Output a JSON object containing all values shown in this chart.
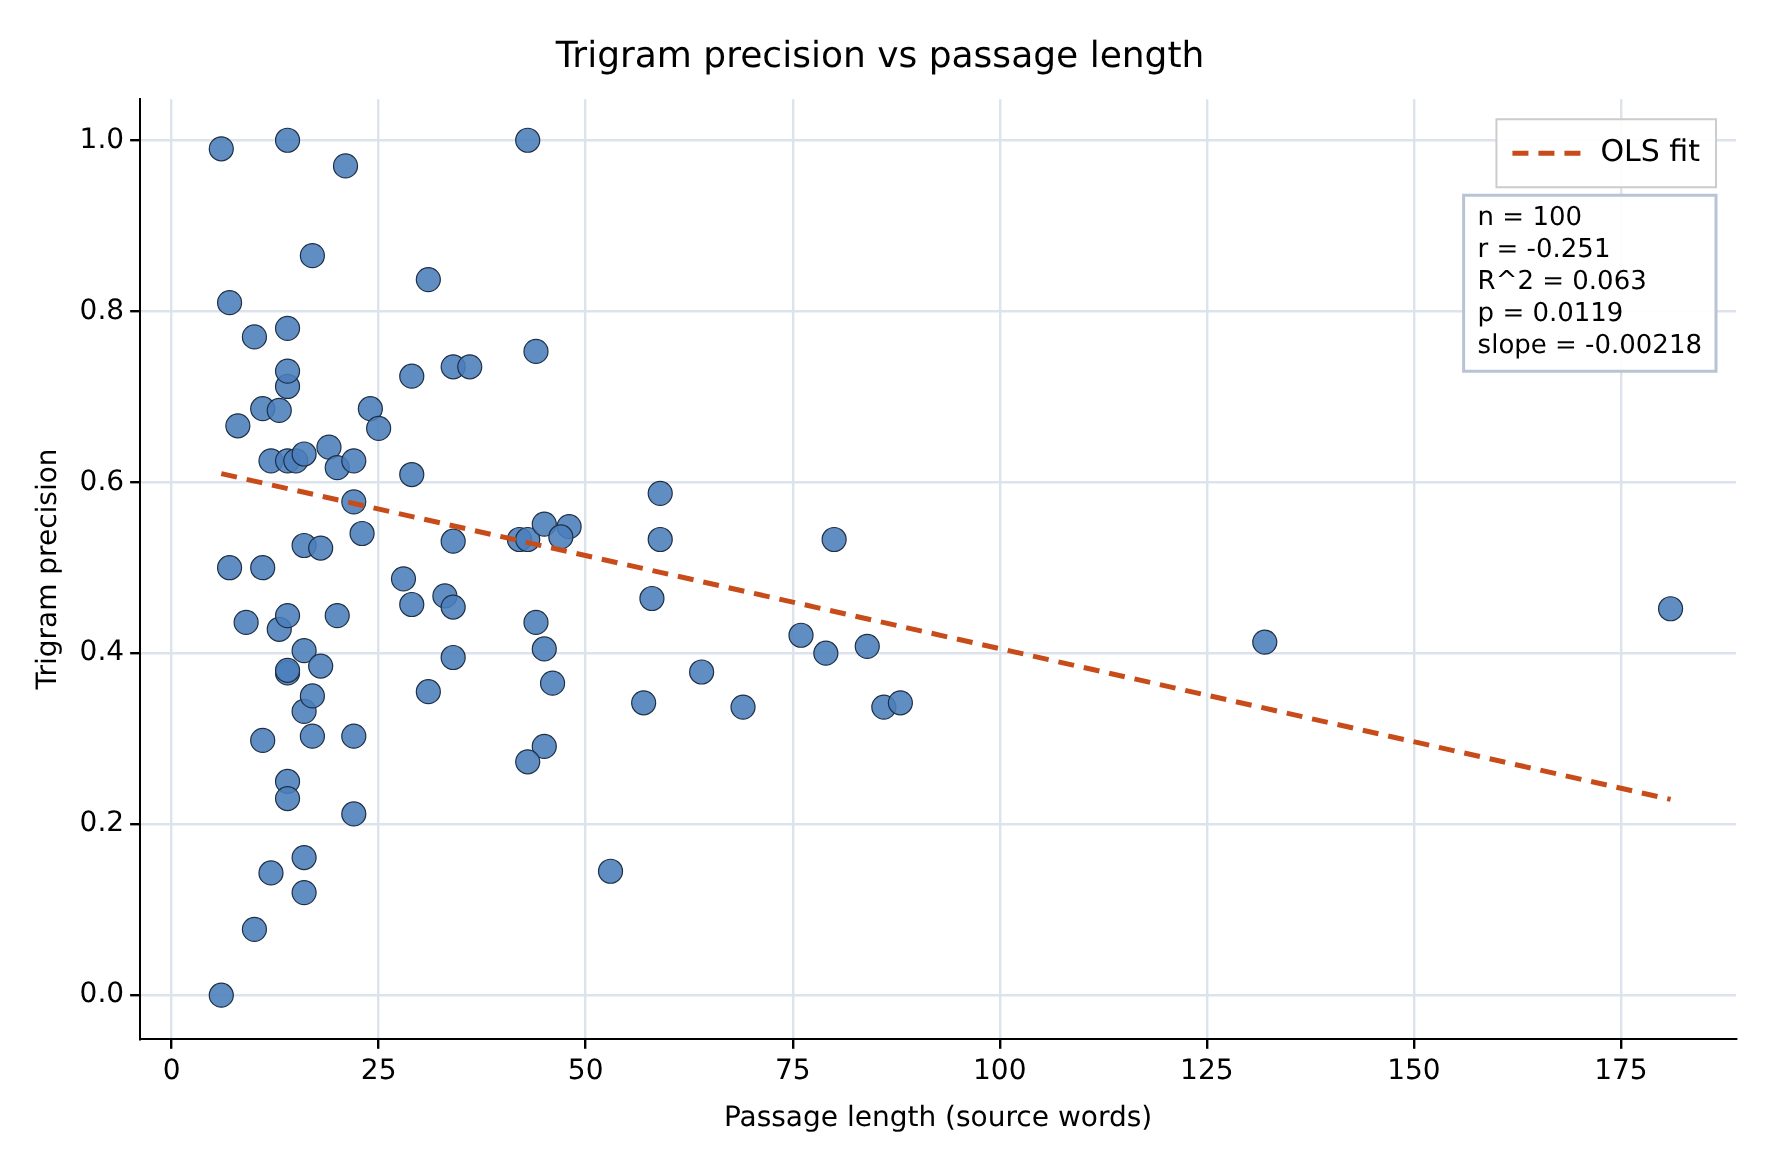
{
  "chart_data": {
    "type": "scatter",
    "title": "Trigram precision vs passage length",
    "xlabel": "Passage length (source words)",
    "ylabel": "Trigram precision",
    "xlim": [
      -3.8,
      188.9
    ],
    "ylim": [
      -0.051,
      1.048
    ],
    "xticks": [
      0,
      25,
      50,
      75,
      100,
      125,
      150,
      175
    ],
    "yticks": [
      {
        "value": 0,
        "label": "0.0"
      },
      {
        "value": 0.2,
        "label": "0.2"
      },
      {
        "value": 0.4,
        "label": "0.4"
      },
      {
        "value": 0.6,
        "label": "0.6"
      },
      {
        "value": 0.8,
        "label": "0.8"
      },
      {
        "value": 1,
        "label": "1.0"
      }
    ],
    "grid": true,
    "legend": "top right",
    "marker": "circle",
    "annotations": [
      "n = 100",
      "r = -0.251",
      "R^2 = 0.063",
      "p = 0.0119",
      "slope = -0.00218"
    ],
    "series": [
      {
        "type": "scatter",
        "color": "#4a7ebb",
        "x": [
          6,
          10,
          12,
          16,
          16,
          14,
          14,
          22,
          11,
          17,
          22,
          16,
          17,
          14,
          14,
          16,
          18,
          9,
          13,
          14,
          20,
          7,
          11,
          16,
          18,
          23,
          28,
          29,
          33,
          34,
          34,
          31,
          34,
          44,
          45,
          46,
          45,
          43,
          43,
          44,
          29,
          34,
          36,
          8,
          11,
          13,
          14,
          14,
          24,
          25,
          12,
          14,
          15,
          16,
          19,
          20,
          22,
          29,
          22,
          42,
          43,
          45,
          6,
          14,
          21,
          17,
          31,
          7,
          14,
          10,
          59,
          59,
          58,
          48,
          47,
          57,
          64,
          69,
          53,
          76,
          79,
          80,
          84,
          86,
          88,
          132,
          181
        ],
        "values": [
          0.0,
          0.077,
          0.143,
          0.161,
          0.12,
          0.25,
          0.23,
          0.212,
          0.298,
          0.303,
          0.303,
          0.332,
          0.35,
          0.377,
          0.38,
          0.403,
          0.385,
          0.436,
          0.428,
          0.444,
          0.444,
          0.5,
          0.5,
          0.526,
          0.523,
          0.54,
          0.487,
          0.457,
          0.467,
          0.454,
          0.395,
          0.355,
          0.531,
          0.436,
          0.405,
          0.365,
          0.291,
          0.273,
          1.0,
          0.753,
          0.724,
          0.735,
          0.735,
          0.666,
          0.686,
          0.684,
          0.712,
          0.73,
          0.686,
          0.663,
          0.625,
          0.625,
          0.625,
          0.633,
          0.641,
          0.617,
          0.625,
          0.609,
          0.577,
          0.533,
          0.533,
          0.551,
          0.99,
          1.0,
          0.97,
          0.865,
          0.837,
          0.81,
          0.78,
          0.77,
          0.587,
          0.533,
          0.464,
          0.548,
          0.536,
          0.342,
          0.378,
          0.337,
          0.145,
          0.421,
          0.4,
          0.533,
          0.408,
          0.337,
          0.342,
          0.413,
          0.452
        ]
      },
      {
        "type": "line",
        "name": "OLS fit",
        "color": "#c84b1a",
        "line_style": "dashed",
        "marker": "none",
        "x": [
          6,
          181
        ],
        "values": [
          0.61,
          0.229
        ]
      }
    ]
  }
}
